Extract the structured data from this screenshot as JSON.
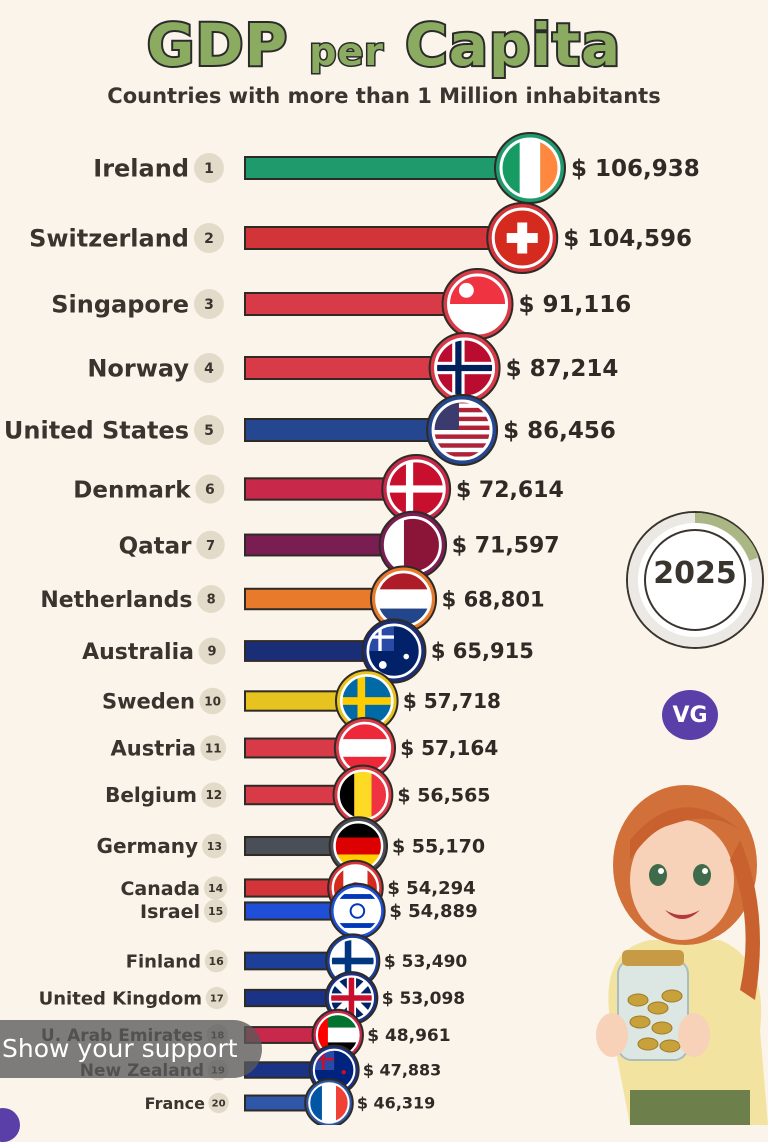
{
  "header": {
    "title_part1": "GDP",
    "title_part2": "per",
    "title_part3": "Capita",
    "subtitle": "Countries with more than 1 Million inhabitants"
  },
  "year": "2025",
  "badge": "VG",
  "support_label": "Show your support",
  "chart_data": {
    "type": "bar",
    "orientation": "horizontal",
    "title": "GDP per Capita",
    "subtitle": "Countries with more than 1 Million inhabitants",
    "xlabel": "",
    "ylabel": "",
    "grid": false,
    "categories": [
      "Ireland",
      "Switzerland",
      "Singapore",
      "Norway",
      "United States",
      "Denmark",
      "Qatar",
      "Netherlands",
      "Australia",
      "Sweden",
      "Austria",
      "Belgium",
      "Germany",
      "Canada",
      "Israel",
      "Finland",
      "United Kingdom",
      "U. Arab Emirates",
      "New Zealand",
      "France"
    ],
    "ranks": [
      "1",
      "2",
      "3",
      "4",
      "5",
      "6",
      "7",
      "8",
      "9",
      "10",
      "11",
      "12",
      "13",
      "14",
      "15",
      "16",
      "17",
      "18",
      "19",
      "20"
    ],
    "values": [
      106938,
      104596,
      91116,
      87214,
      86456,
      72614,
      71597,
      68801,
      65915,
      57718,
      57164,
      56565,
      55170,
      54294,
      54889,
      53490,
      53098,
      48961,
      47883,
      46319
    ],
    "labels": [
      "$ 106,938",
      "$ 104,596",
      "$ 91,116",
      "$ 87,214",
      "$ 86,456",
      "$ 72,614",
      "$ 71,597",
      "$ 68,801",
      "$ 65,915",
      "$ 57,718",
      "$ 57,164",
      "$ 56,565",
      "$ 55,170",
      "$ 54,294",
      "$ 54,889",
      "$ 53,490",
      "$ 53,098",
      "$ 48,961",
      "$ 47,883",
      "$ 46,319"
    ],
    "colors": [
      "#1f9a6c",
      "#d2343a",
      "#d93a48",
      "#d93a48",
      "#24478f",
      "#c8284a",
      "#7a1d52",
      "#e87a2c",
      "#1a2e78",
      "#e6c31f",
      "#d93a48",
      "#d93a48",
      "#4a4f57",
      "#d2343a",
      "#1e4fd6",
      "#1c3f9a",
      "#1a3387",
      "#c8284a",
      "#1a3387",
      "#2f57a8"
    ],
    "flags": [
      "ireland-flag",
      "switzerland-flag",
      "singapore-flag",
      "norway-flag",
      "usa-flag",
      "denmark-flag",
      "qatar-flag",
      "netherlands-flag",
      "australia-flag",
      "sweden-flag",
      "austria-flag",
      "belgium-flag",
      "germany-flag",
      "canada-flag",
      "israel-flag",
      "finland-flag",
      "uk-flag",
      "uae-flag",
      "newzealand-flag",
      "france-flag"
    ]
  }
}
